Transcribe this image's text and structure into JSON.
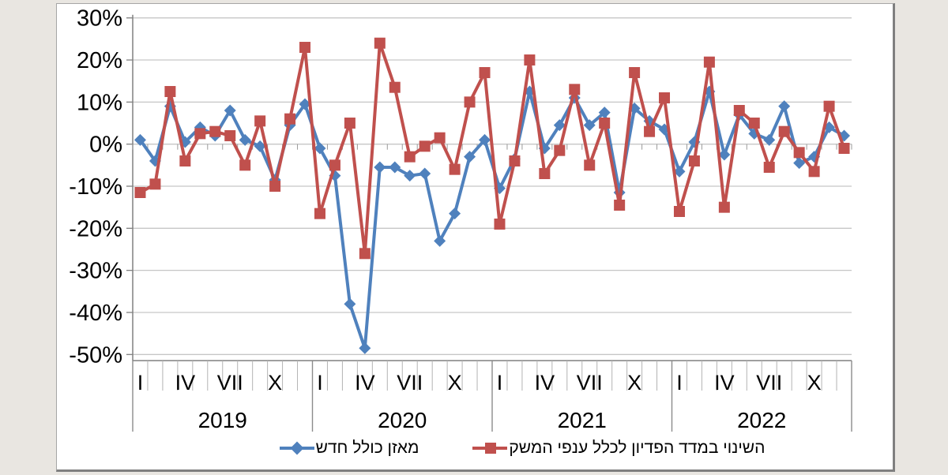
{
  "chart_data": {
    "type": "line",
    "title": "",
    "ylim": [
      -50,
      30
    ],
    "grid": true,
    "legend_position": "bottom",
    "y_tick_labels": [
      "30%",
      "20%",
      "10%",
      "0%",
      "-10%",
      "-20%",
      "-30%",
      "-40%",
      "-50%"
    ],
    "y_tick_values": [
      30,
      20,
      10,
      0,
      -10,
      -20,
      -30,
      -40,
      -50
    ],
    "years": [
      "2019",
      "2020",
      "2021",
      "2022"
    ],
    "month_tick_labels": [
      "I",
      "IV",
      "VII",
      "X"
    ],
    "month_tick_positions": [
      1,
      4,
      7,
      10
    ],
    "months_per_year": 12,
    "series": [
      {
        "name": "מאזן כולל חדש",
        "color": "#4f81bd",
        "marker": "diamond",
        "values": [
          1,
          -4,
          9,
          0.5,
          4,
          2,
          8,
          1,
          -0.5,
          -8.5,
          4.5,
          9.5,
          -1,
          -7.5,
          -38,
          -48.5,
          -5.5,
          -5.5,
          -7.5,
          -7,
          -23,
          -16.5,
          -3,
          1,
          -10.5,
          -3.5,
          12.5,
          -1,
          4.5,
          11,
          4.5,
          7.5,
          -11.5,
          8.5,
          5.5,
          3.5,
          -6.5,
          0.5,
          12.5,
          -2.5,
          7,
          2.5,
          1,
          9,
          -4.5,
          -3,
          4,
          2
        ]
      },
      {
        "name": "השינוי במדד הפדיון לכלל ענפי המשק",
        "color": "#c0504d",
        "marker": "square",
        "values": [
          -11.5,
          -9.5,
          12.5,
          -4,
          2.5,
          3,
          2,
          -5,
          5.5,
          -10,
          6,
          23,
          -16.5,
          -5,
          5,
          -26,
          24,
          13.5,
          -3,
          -0.5,
          1.5,
          -6,
          10,
          17,
          -19,
          -4,
          20,
          -7,
          -1.5,
          13,
          -5,
          5,
          -14.5,
          17,
          3,
          11,
          -16,
          -4,
          19.5,
          -15,
          8,
          5,
          -5.5,
          3,
          -2,
          -6.5,
          9,
          -1
        ]
      }
    ]
  },
  "legend": {
    "series1_label": "מאזן כולל חדש",
    "series2_label": "השינוי במדד הפדיון לכלל ענפי המשק"
  },
  "colors": {
    "series1": "#4f81bd",
    "series2": "#c0504d",
    "gridline": "#c6c6c6",
    "axis": "#808080",
    "background": "#e9e6e1",
    "plot_background": "#ffffff"
  }
}
